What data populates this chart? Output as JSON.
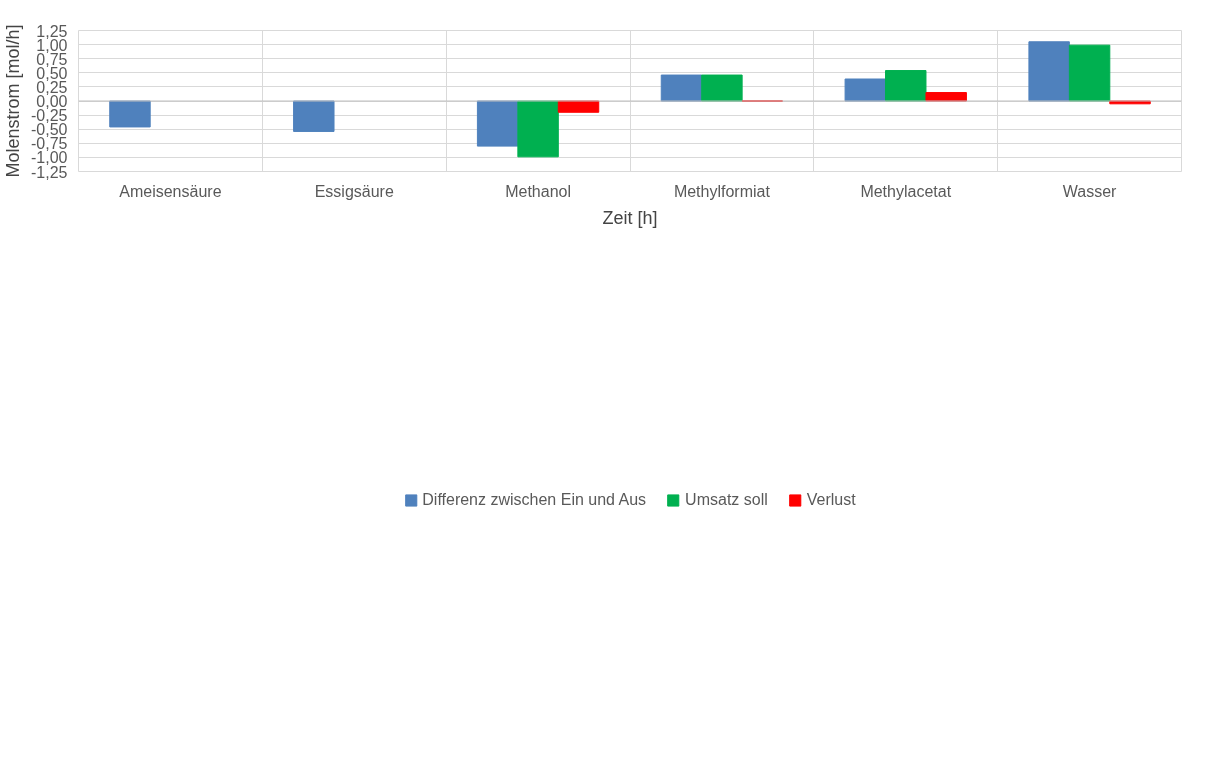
{
  "chart_data": {
    "type": "bar",
    "xlabel": "Zeit [h]",
    "ylabel": "Molenstrom [mol/h]",
    "categories": [
      "Ameisensäure",
      "Essigsäure",
      "Methanol",
      "Methylformiat",
      "Methylacetat",
      "Wasser"
    ],
    "series": [
      {
        "name": "Differenz zwischen Ein und Aus",
        "color": "#4f81bd",
        "values": [
          -0.46,
          -0.54,
          -0.8,
          0.46,
          0.39,
          1.05
        ]
      },
      {
        "name": "Umsatz soll",
        "color": "#00b050",
        "values": [
          null,
          null,
          -0.99,
          0.46,
          0.54,
          0.99
        ]
      },
      {
        "name": "Verlust",
        "color": "#ff0000",
        "values": [
          null,
          null,
          -0.2,
          0.0,
          0.15,
          -0.05
        ]
      }
    ],
    "ylim": [
      -1.25,
      1.25
    ],
    "yticks": [
      {
        "value": -1.25,
        "label": "-1,25"
      },
      {
        "value": -1.0,
        "label": "-1,00"
      },
      {
        "value": -0.75,
        "label": "-0,75"
      },
      {
        "value": -0.5,
        "label": "-0,50"
      },
      {
        "value": -0.25,
        "label": "-0,25"
      },
      {
        "value": 0,
        "label": "0,00"
      },
      {
        "value": 0.25,
        "label": "0,25"
      },
      {
        "value": 0.5,
        "label": "0,50"
      },
      {
        "value": 0.75,
        "label": "0,75"
      },
      {
        "value": 1.0,
        "label": "1,00"
      },
      {
        "value": 1.25,
        "label": "1,25"
      }
    ],
    "grid": true,
    "legend": "bottom"
  }
}
